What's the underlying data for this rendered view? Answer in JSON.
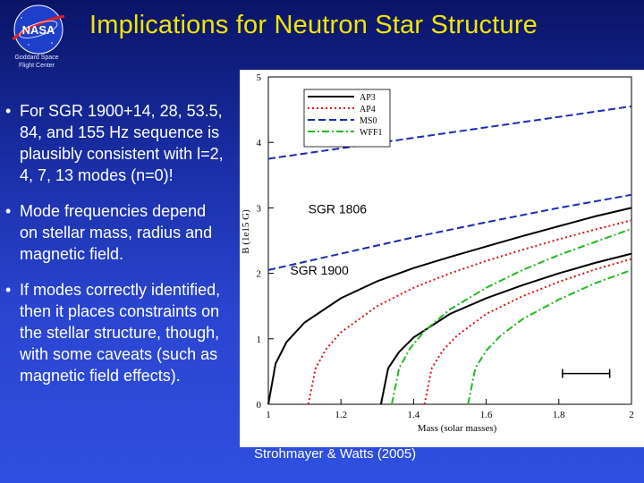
{
  "slide": {
    "title": "Implications for Neutron Star Structure",
    "logo_text": "NASA",
    "center_name_1": "Goddard Space",
    "center_name_2": "Flight Center",
    "bullet_char": "•",
    "bullets": [
      "For SGR 1900+14, 28, 53.5, 84, and 155 Hz sequence is plausibly consistent with l=2, 4, 7, 13 modes (n=0)!",
      "Mode frequencies depend on stellar mass, radius and magnetic field.",
      "If modes correctly identified, then it places constraints on the stellar structure, though, with some caveats (such as magnetic field effects)."
    ],
    "citation": "Strohmayer & Watts (2005)"
  },
  "colors": {
    "title": "#f2e600",
    "AP3": "#000000",
    "AP4": "#dd1111",
    "MS0": "#1a2ab8",
    "WFF1": "#22b822"
  },
  "chart_data": {
    "type": "line",
    "xlabel": "Mass (solar masses)",
    "ylabel": "B (1e15 G)",
    "xlim": [
      1.0,
      2.0
    ],
    "ylim": [
      0,
      5
    ],
    "x_ticks": [
      1,
      1.2,
      1.4,
      1.6,
      1.8,
      2
    ],
    "x_tick_labels": [
      "1",
      "1.2",
      "1.4",
      "1.6",
      "1.8",
      "2"
    ],
    "y_ticks": [
      0,
      1,
      2,
      3,
      4,
      5
    ],
    "y_tick_labels": [
      "0",
      "1",
      "2",
      "3",
      "4",
      "5"
    ],
    "series": [
      {
        "name": "AP3",
        "dash": "solid",
        "x": [
          1.0,
          1.02,
          1.05,
          1.1,
          1.2,
          1.3,
          1.4,
          1.5,
          1.6,
          1.7,
          1.8,
          1.9,
          2.0
        ],
        "y": [
          0.0,
          0.62,
          0.95,
          1.25,
          1.62,
          1.88,
          2.08,
          2.25,
          2.41,
          2.57,
          2.72,
          2.87,
          3.0
        ]
      },
      {
        "name": "AP3",
        "dash": "solid",
        "x": [
          1.31,
          1.33,
          1.36,
          1.4,
          1.5,
          1.6,
          1.7,
          1.8,
          1.9,
          2.0
        ],
        "y": [
          0.0,
          0.55,
          0.8,
          1.02,
          1.38,
          1.62,
          1.82,
          2.0,
          2.16,
          2.3
        ]
      },
      {
        "name": "AP4",
        "dash": "dotted",
        "x": [
          1.11,
          1.13,
          1.16,
          1.2,
          1.3,
          1.4,
          1.5,
          1.6,
          1.7,
          1.8,
          1.9,
          2.0
        ],
        "y": [
          0.0,
          0.55,
          0.85,
          1.1,
          1.5,
          1.78,
          2.0,
          2.19,
          2.36,
          2.52,
          2.67,
          2.81
        ]
      },
      {
        "name": "AP4",
        "dash": "dotted",
        "x": [
          1.43,
          1.45,
          1.48,
          1.52,
          1.6,
          1.7,
          1.8,
          1.9,
          2.0
        ],
        "y": [
          0.0,
          0.55,
          0.82,
          1.05,
          1.38,
          1.65,
          1.87,
          2.06,
          2.22
        ]
      },
      {
        "name": "MS0",
        "dash": "dashed",
        "x": [
          1.0,
          1.2,
          1.4,
          1.6,
          1.8,
          2.0
        ],
        "y": [
          3.75,
          3.91,
          4.07,
          4.23,
          4.39,
          4.55
        ]
      },
      {
        "name": "MS0",
        "dash": "dashed",
        "x": [
          1.0,
          1.2,
          1.4,
          1.6,
          1.8,
          2.0
        ],
        "y": [
          2.05,
          2.3,
          2.55,
          2.78,
          3.0,
          3.2
        ]
      },
      {
        "name": "WFF1",
        "dash": "dashdot",
        "x": [
          1.34,
          1.36,
          1.39,
          1.43,
          1.5,
          1.6,
          1.7,
          1.8,
          1.9,
          2.0
        ],
        "y": [
          0.0,
          0.55,
          0.85,
          1.12,
          1.45,
          1.78,
          2.05,
          2.28,
          2.48,
          2.68
        ]
      },
      {
        "name": "WFF1",
        "dash": "dashdot",
        "x": [
          1.55,
          1.57,
          1.6,
          1.64,
          1.7,
          1.8,
          1.9,
          2.0
        ],
        "y": [
          0.0,
          0.55,
          0.82,
          1.05,
          1.3,
          1.6,
          1.85,
          2.05
        ]
      }
    ],
    "legend": {
      "position": "top-left",
      "entries": [
        "AP3",
        "AP4",
        "MS0",
        "WFF1"
      ]
    },
    "annotations": [
      {
        "text": "SGR 1806",
        "x": 1.11,
        "y": 2.92
      },
      {
        "text": "SGR 1900",
        "x": 1.06,
        "y": 1.98
      }
    ],
    "error_bar": {
      "x1": 1.81,
      "x2": 1.94,
      "y": 0.47
    }
  }
}
